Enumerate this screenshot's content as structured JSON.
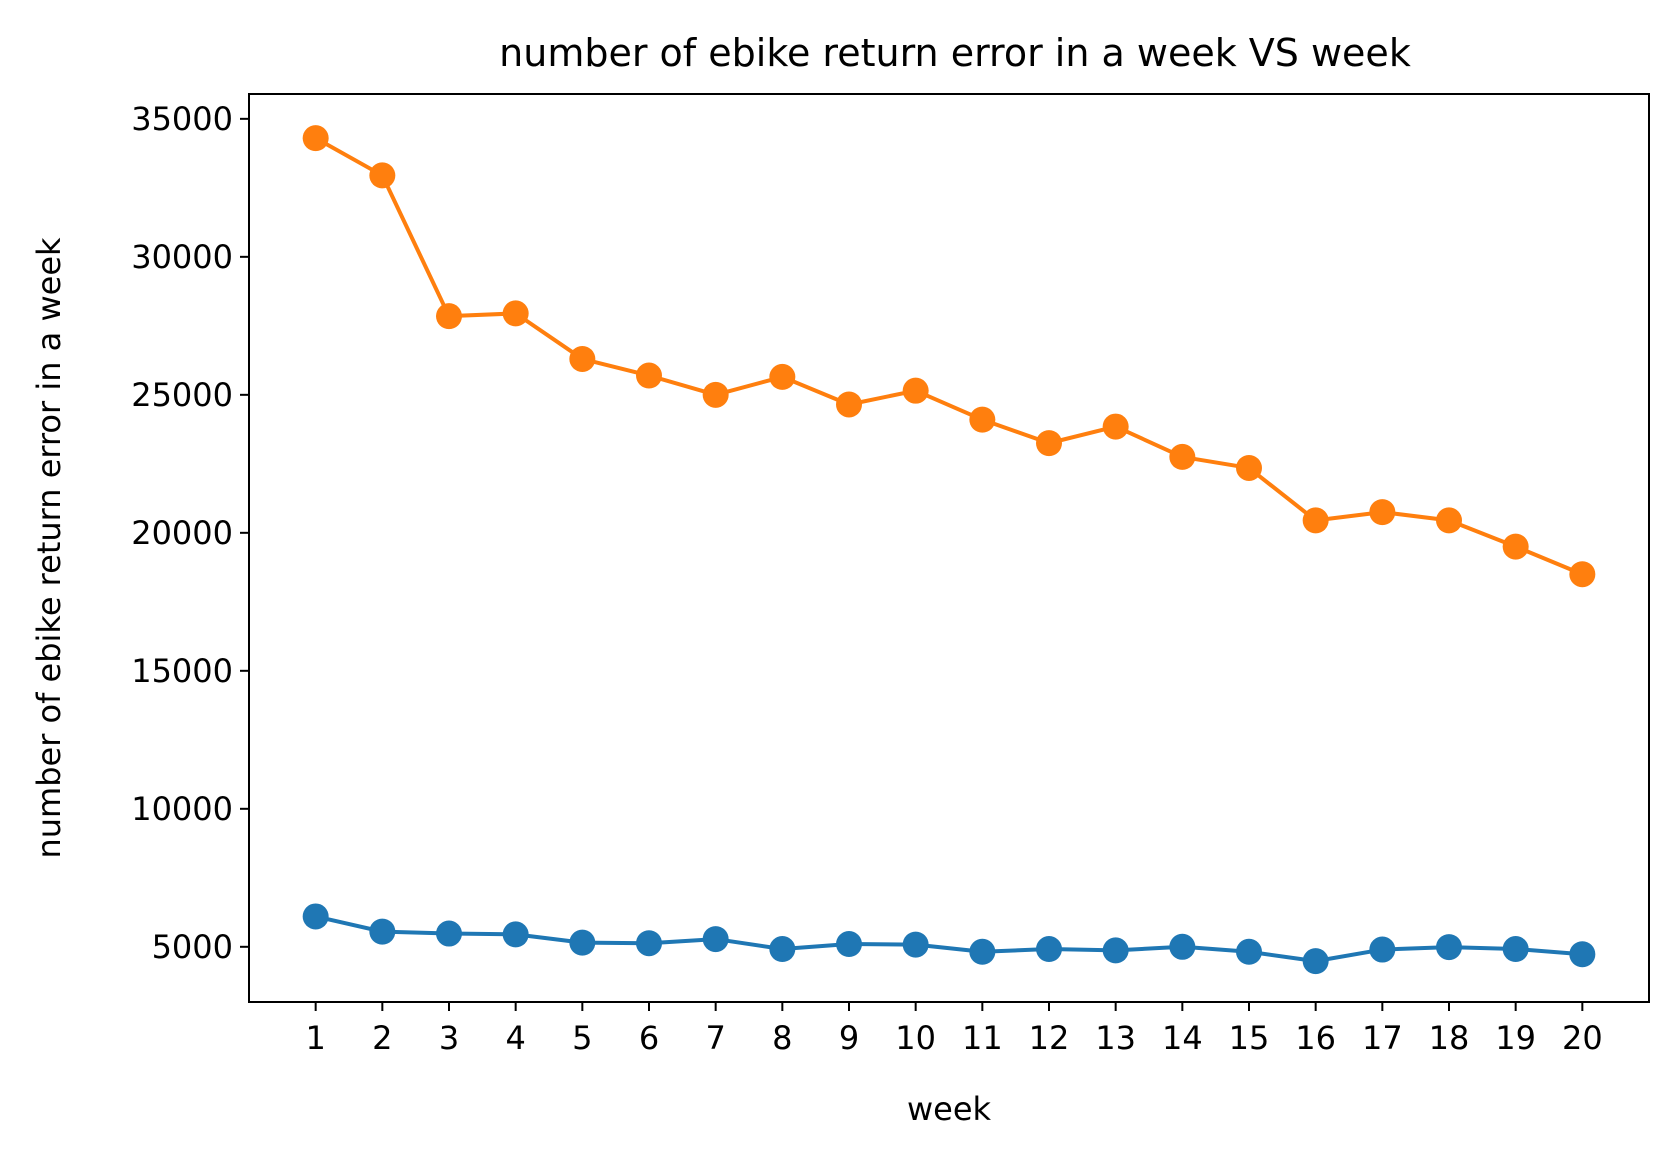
{
  "chart_data": {
    "type": "line",
    "title": "number of ebike return error in a week VS week",
    "xlabel": "week",
    "ylabel": "number of ebike return error in a week",
    "x": [
      1,
      2,
      3,
      4,
      5,
      6,
      7,
      8,
      9,
      10,
      11,
      12,
      13,
      14,
      15,
      16,
      17,
      18,
      19,
      20
    ],
    "xlim": [
      0,
      21
    ],
    "ylim": [
      3000,
      35900
    ],
    "yticks": [
      5000,
      10000,
      15000,
      20000,
      25000,
      30000,
      35000
    ],
    "grid": false,
    "marker": "circle",
    "series": [
      {
        "color": "#ff7f0e",
        "values": [
          34300,
          32950,
          27850,
          27950,
          26300,
          25700,
          25000,
          25650,
          24650,
          25150,
          24100,
          23250,
          23850,
          22750,
          22350,
          20450,
          20750,
          20450,
          19500,
          18500
        ]
      },
      {
        "color": "#1f77b4",
        "values": [
          6100,
          5550,
          5480,
          5450,
          5150,
          5130,
          5280,
          4920,
          5100,
          5080,
          4820,
          4920,
          4870,
          5000,
          4820,
          4480,
          4900,
          4990,
          4920,
          4730
        ]
      }
    ]
  }
}
